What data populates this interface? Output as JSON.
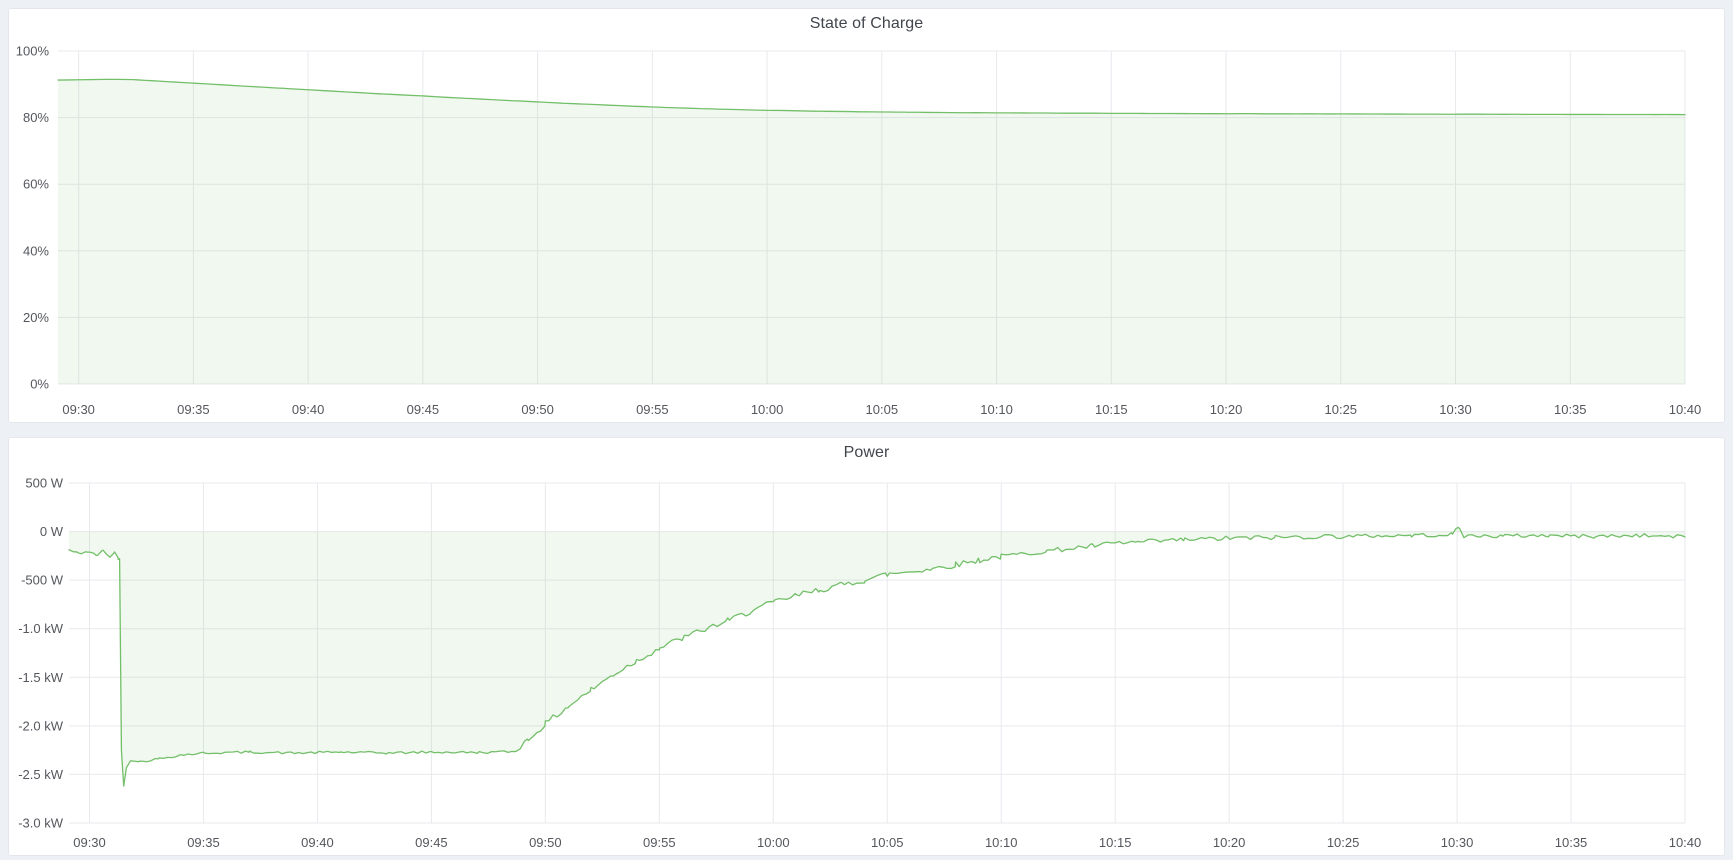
{
  "page": {
    "background_color": "#edf0f4",
    "panel_background": "#ffffff",
    "accent_green": "#73bf69",
    "grid_color": "#e8e9ec",
    "tick_text_color": "#55575d",
    "title_text_color": "#41454c"
  },
  "chart_data": [
    {
      "type": "area",
      "title": "State of Charge",
      "unit": "%",
      "legend": "none",
      "grid": "on",
      "line_color": "#73bf69",
      "fill_color": "#73bf69",
      "fill_opacity": 0.1,
      "baseline": 0,
      "t_range": [
        -0.9,
        70
      ],
      "y_range": [
        0,
        100
      ],
      "x_tick_t": [
        0,
        5,
        10,
        15,
        20,
        25,
        30,
        35,
        40,
        45,
        50,
        55,
        60,
        65,
        70
      ],
      "x_tick_labels": [
        "09:30",
        "09:35",
        "09:40",
        "09:45",
        "09:50",
        "09:55",
        "10:00",
        "10:05",
        "10:10",
        "10:15",
        "10:20",
        "10:25",
        "10:30",
        "10:35",
        "10:40"
      ],
      "y_ticks": [
        {
          "v": 100,
          "label": "100%"
        },
        {
          "v": 80,
          "label": "80%"
        },
        {
          "v": 60,
          "label": "60%"
        },
        {
          "v": 40,
          "label": "40%"
        },
        {
          "v": 20,
          "label": "20%"
        },
        {
          "v": 0,
          "label": "0%"
        }
      ],
      "points": [
        [
          -0.9,
          91.3
        ],
        [
          0,
          91.35
        ],
        [
          0.8,
          91.45
        ],
        [
          1.6,
          91.5
        ],
        [
          2.4,
          91.4
        ],
        [
          3,
          91.15
        ],
        [
          4,
          90.75
        ],
        [
          5,
          90.35
        ],
        [
          6,
          89.95
        ],
        [
          7,
          89.55
        ],
        [
          8,
          89.15
        ],
        [
          9,
          88.75
        ],
        [
          10,
          88.35
        ],
        [
          11,
          87.95
        ],
        [
          12,
          87.6
        ],
        [
          13,
          87.2
        ],
        [
          14,
          86.85
        ],
        [
          15,
          86.5
        ],
        [
          16,
          86.1
        ],
        [
          17,
          85.75
        ],
        [
          18,
          85.4
        ],
        [
          19,
          85.05
        ],
        [
          20,
          84.7
        ],
        [
          21,
          84.35
        ],
        [
          22,
          84.05
        ],
        [
          23,
          83.75
        ],
        [
          24,
          83.45
        ],
        [
          25,
          83.2
        ],
        [
          26,
          82.95
        ],
        [
          27,
          82.72
        ],
        [
          28,
          82.52
        ],
        [
          29,
          82.35
        ],
        [
          30,
          82.2
        ],
        [
          32,
          81.95
        ],
        [
          34,
          81.75
        ],
        [
          36,
          81.62
        ],
        [
          38,
          81.5
        ],
        [
          40,
          81.42
        ],
        [
          45,
          81.28
        ],
        [
          50,
          81.18
        ],
        [
          55,
          81.1
        ],
        [
          60,
          81.02
        ],
        [
          65,
          80.96
        ],
        [
          70,
          80.9
        ]
      ],
      "noise": {
        "seed": 7,
        "step": 0.5,
        "segments": [
          {
            "from": -0.9,
            "to": 70,
            "amp": 0.02
          }
        ]
      }
    },
    {
      "type": "area",
      "title": "Power",
      "unit": "W",
      "legend": "none",
      "grid": "on",
      "line_color": "#73bf69",
      "fill_color": "#73bf69",
      "fill_opacity": 0.1,
      "baseline": 0,
      "t_range": [
        -0.9,
        70
      ],
      "y_range": [
        -3000,
        500
      ],
      "x_tick_t": [
        0,
        5,
        10,
        15,
        20,
        25,
        30,
        35,
        40,
        45,
        50,
        55,
        60,
        65,
        70
      ],
      "x_tick_labels": [
        "09:30",
        "09:35",
        "09:40",
        "09:45",
        "09:50",
        "09:55",
        "10:00",
        "10:05",
        "10:10",
        "10:15",
        "10:20",
        "10:25",
        "10:30",
        "10:35",
        "10:40"
      ],
      "y_ticks": [
        {
          "v": 500,
          "label": "500 W"
        },
        {
          "v": 0,
          "label": "0 W"
        },
        {
          "v": -500,
          "label": "-500 W"
        },
        {
          "v": -1000,
          "label": "-1.0 kW"
        },
        {
          "v": -1500,
          "label": "-1.5 kW"
        },
        {
          "v": -2000,
          "label": "-2.0 kW"
        },
        {
          "v": -2500,
          "label": "-2.5 kW"
        },
        {
          "v": -3000,
          "label": "-3.0 kW"
        }
      ],
      "points": [
        [
          -0.9,
          -190
        ],
        [
          -0.5,
          -225
        ],
        [
          -0.1,
          -205
        ],
        [
          0.3,
          -245
        ],
        [
          0.6,
          -200
        ],
        [
          0.9,
          -255
        ],
        [
          1.1,
          -215
        ],
        [
          1.25,
          -270
        ],
        [
          1.32,
          -280
        ],
        [
          1.4,
          -2250
        ],
        [
          1.5,
          -2620
        ],
        [
          1.62,
          -2430
        ],
        [
          1.8,
          -2360
        ],
        [
          2.2,
          -2370
        ],
        [
          3,
          -2340
        ],
        [
          4,
          -2300
        ],
        [
          5,
          -2280
        ],
        [
          7,
          -2270
        ],
        [
          9,
          -2280
        ],
        [
          11,
          -2270
        ],
        [
          13,
          -2280
        ],
        [
          15,
          -2270
        ],
        [
          17,
          -2275
        ],
        [
          18.6,
          -2265
        ],
        [
          19.2,
          -2150
        ],
        [
          20,
          -1980
        ],
        [
          21,
          -1800
        ],
        [
          22,
          -1630
        ],
        [
          23,
          -1470
        ],
        [
          24,
          -1330
        ],
        [
          25,
          -1200
        ],
        [
          26,
          -1100
        ],
        [
          27,
          -1005
        ],
        [
          28,
          -920
        ],
        [
          29,
          -820
        ],
        [
          30,
          -730
        ],
        [
          31,
          -660
        ],
        [
          32,
          -600
        ],
        [
          33,
          -550
        ],
        [
          34,
          -500
        ],
        [
          35,
          -440
        ],
        [
          36,
          -410
        ],
        [
          37,
          -380
        ],
        [
          38,
          -340
        ],
        [
          39,
          -295
        ],
        [
          40,
          -255
        ],
        [
          42,
          -200
        ],
        [
          44,
          -150
        ],
        [
          45,
          -120
        ],
        [
          46,
          -110
        ],
        [
          48,
          -85
        ],
        [
          50,
          -70
        ],
        [
          52,
          -60
        ],
        [
          54,
          -50
        ],
        [
          56,
          -45
        ],
        [
          58,
          -40
        ],
        [
          59.8,
          -30
        ],
        [
          60.05,
          50
        ],
        [
          60.3,
          -45
        ],
        [
          62,
          -45
        ],
        [
          64,
          -40
        ],
        [
          66,
          -50
        ],
        [
          68,
          -40
        ],
        [
          70,
          -55
        ]
      ],
      "noise": {
        "seed": 42,
        "step": 0.18,
        "segments": [
          {
            "from": -0.9,
            "to": 1.32,
            "amp": 15
          },
          {
            "from": 1.32,
            "to": 2.2,
            "amp": 0
          },
          {
            "from": 2.2,
            "to": 18.6,
            "amp": 12
          },
          {
            "from": 18.6,
            "to": 40,
            "amp": 32
          },
          {
            "from": 40,
            "to": 55,
            "amp": 25
          },
          {
            "from": 55,
            "to": 70,
            "amp": 20
          }
        ]
      }
    }
  ]
}
